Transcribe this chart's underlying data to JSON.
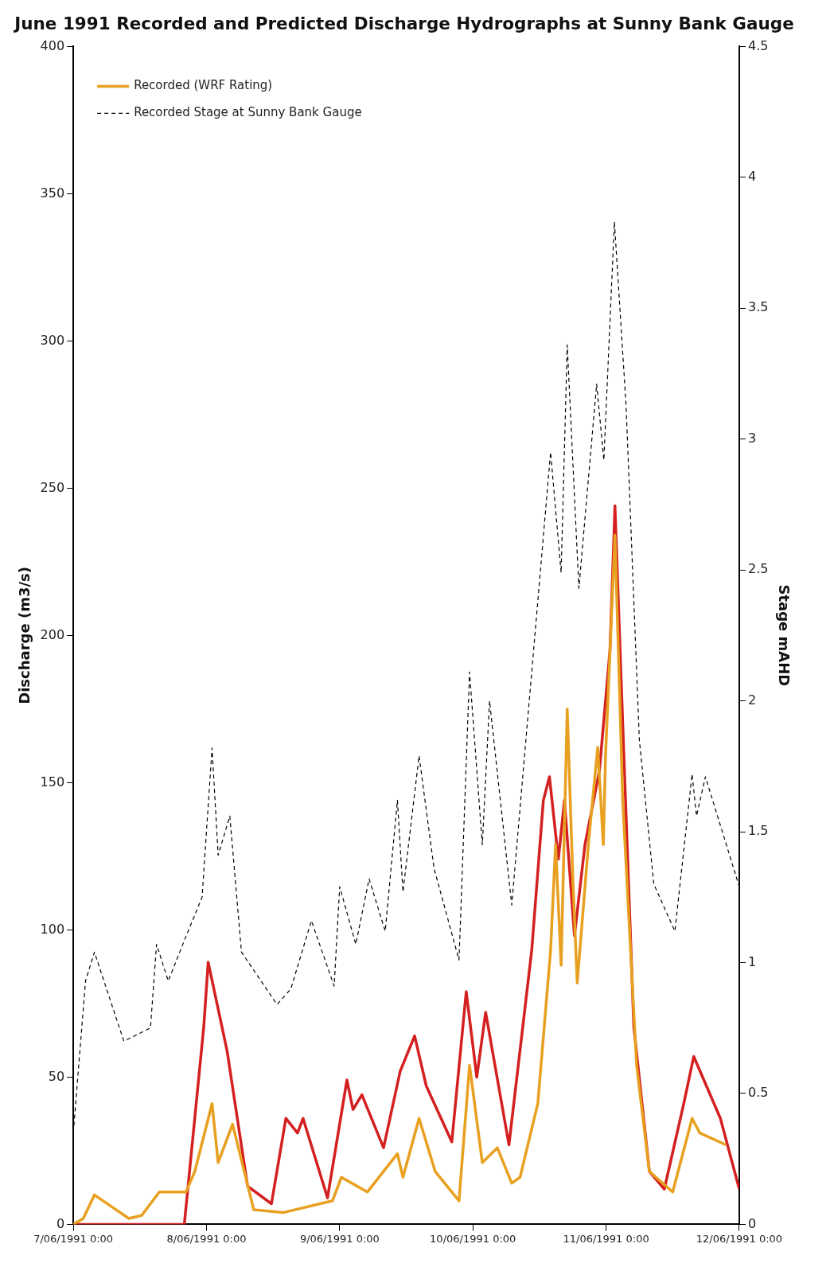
{
  "chart_data": {
    "type": "line",
    "title": "June 1991 Recorded and Predicted Discharge Hydrographs at Sunny Bank Gauge",
    "ylabel": "Discharge (m3/s)",
    "y2label": "Stage mAHD",
    "xlim": [
      "1991-06-07T00:00",
      "1991-06-12T00:00"
    ],
    "xticks": [
      {
        "value": "1991-06-07T00:00",
        "label": "7/06/1991 0:00"
      },
      {
        "value": "1991-06-08T00:00",
        "label": "8/06/1991 0:00"
      },
      {
        "value": "1991-06-09T00:00",
        "label": "9/06/1991 0:00"
      },
      {
        "value": "1991-06-10T00:00",
        "label": "10/06/1991 0:00"
      },
      {
        "value": "1991-06-11T00:00",
        "label": "11/06/1991 0:00"
      },
      {
        "value": "1991-06-12T00:00",
        "label": "12/06/1991 0:00"
      }
    ],
    "ylim": [
      0,
      400
    ],
    "yticks": [
      0,
      50,
      100,
      150,
      200,
      250,
      300,
      350,
      400
    ],
    "y2lim": [
      0,
      4.5
    ],
    "y2ticks": [
      0,
      0.5,
      1,
      1.5,
      2,
      2.5,
      3,
      3.5,
      4,
      4.5
    ],
    "legend": "top left",
    "marker": "none",
    "series": [
      {
        "name": "Recorded (WRF Rating)",
        "color": "#e8a020",
        "line_style": "solid",
        "x": [
          "1991-06-07T00:00",
          "1991-06-07T01:48",
          "1991-06-07T03:48",
          "1991-06-07T10:00",
          "1991-06-07T12:18",
          "1991-06-07T15:30",
          "1991-06-07T20:18",
          "1991-06-07T21:54",
          "1991-06-08T01:00",
          "1991-06-08T02:06",
          "1991-06-08T04:42",
          "1991-06-08T08:30",
          "1991-06-08T13:48",
          "1991-06-08T22:42",
          "1991-06-09T00:18",
          "1991-06-09T05:00",
          "1991-06-09T10:24",
          "1991-06-09T11:24",
          "1991-06-09T14:18",
          "1991-06-09T17:12",
          "1991-06-09T21:30",
          "1991-06-09T23:24",
          "1991-06-10T01:42",
          "1991-06-10T04:24",
          "1991-06-10T07:00",
          "1991-06-10T08:30",
          "1991-06-10T11:42",
          "1991-06-10T14:00",
          "1991-06-10T14:54",
          "1991-06-10T15:54",
          "1991-06-10T17:00",
          "1991-06-10T18:00",
          "1991-06-10T18:48",
          "1991-06-10T20:54",
          "1991-06-10T22:30",
          "1991-06-10T23:30",
          "1991-06-10T23:54",
          "1991-06-11T01:36",
          "1991-06-11T03:00",
          "1991-06-11T05:30",
          "1991-06-11T07:48",
          "1991-06-11T12:00",
          "1991-06-11T15:30",
          "1991-06-11T16:54",
          "1991-06-11T21:36"
        ],
        "values": [
          0,
          2,
          10,
          2,
          3,
          11,
          11,
          18,
          41,
          21,
          34,
          5,
          4,
          8,
          16,
          11,
          24,
          16,
          36,
          18,
          8,
          54,
          21,
          26,
          14,
          16,
          41,
          93,
          129,
          88,
          175,
          118,
          82,
          131,
          162,
          129,
          159,
          234,
          144,
          54,
          18,
          11,
          36,
          31,
          27
        ]
      },
      {
        "name": "Recorded Stage at Sunny Bank Gauge",
        "color": "#000000",
        "line_style": "dashed",
        "axis": "y2",
        "x": [
          "1991-06-07T00:00",
          "1991-06-07T02:12",
          "1991-06-07T03:48",
          "1991-06-07T09:06",
          "1991-06-07T13:54",
          "1991-06-07T15:00",
          "1991-06-07T17:06",
          "1991-06-07T20:18",
          "1991-06-07T23:12",
          "1991-06-08T01:00",
          "1991-06-08T02:06",
          "1991-06-08T04:12",
          "1991-06-08T06:18",
          "1991-06-08T12:42",
          "1991-06-08T15:12",
          "1991-06-08T18:54",
          "1991-06-08T23:00",
          "1991-06-09T00:00",
          "1991-06-09T02:54",
          "1991-06-09T05:18",
          "1991-06-09T08:12",
          "1991-06-09T10:24",
          "1991-06-09T11:24",
          "1991-06-09T14:18",
          "1991-06-09T17:00",
          "1991-06-09T21:30",
          "1991-06-09T23:24",
          "1991-06-10T01:42",
          "1991-06-10T03:00",
          "1991-06-10T07:00",
          "1991-06-10T14:00",
          "1991-06-10T15:54",
          "1991-06-10T17:00",
          "1991-06-10T19:06",
          "1991-06-10T22:18",
          "1991-06-10T23:36",
          "1991-06-11T01:30",
          "1991-06-11T03:36",
          "1991-06-11T06:00",
          "1991-06-11T08:36",
          "1991-06-11T12:24",
          "1991-06-11T15:30",
          "1991-06-11T16:18",
          "1991-06-11T17:54",
          "1991-06-12T00:00"
        ],
        "values": [
          0.35,
          0.93,
          1.04,
          0.7,
          0.75,
          1.07,
          0.93,
          1.1,
          1.25,
          1.82,
          1.41,
          1.56,
          1.04,
          0.84,
          0.9,
          1.16,
          0.91,
          1.29,
          1.07,
          1.32,
          1.12,
          1.62,
          1.27,
          1.79,
          1.36,
          1.01,
          2.11,
          1.45,
          2,
          1.22,
          2.95,
          2.49,
          3.36,
          2.43,
          3.21,
          2.92,
          3.83,
          3.13,
          1.85,
          1.3,
          1.12,
          1.72,
          1.56,
          1.71,
          1.29
        ]
      },
      {
        "color": "#d42020",
        "line_style": "solid",
        "x": [
          "1991-06-07T00:00",
          "1991-06-07T20:00",
          "1991-06-07T23:30",
          "1991-06-08T00:18",
          "1991-06-08T03:42",
          "1991-06-08T07:24",
          "1991-06-08T11:42",
          "1991-06-08T14:18",
          "1991-06-08T16:24",
          "1991-06-08T17:24",
          "1991-06-08T21:48",
          "1991-06-09T01:18",
          "1991-06-09T02:24",
          "1991-06-09T04:00",
          "1991-06-09T07:54",
          "1991-06-09T10:54",
          "1991-06-09T13:30",
          "1991-06-09T15:36",
          "1991-06-09T20:12",
          "1991-06-09T22:48",
          "1991-06-10T00:42",
          "1991-06-10T02:18",
          "1991-06-10T06:30",
          "1991-06-10T10:36",
          "1991-06-10T12:42",
          "1991-06-10T13:48",
          "1991-06-10T15:24",
          "1991-06-10T16:30",
          "1991-06-10T18:18",
          "1991-06-10T20:12",
          "1991-06-10T22:48",
          "1991-06-11T00:42",
          "1991-06-11T01:36",
          "1991-06-11T03:00",
          "1991-06-11T05:00",
          "1991-06-11T07:48",
          "1991-06-11T10:30",
          "1991-06-11T14:00",
          "1991-06-11T15:48",
          "1991-06-11T20:36",
          "1991-06-12T00:00"
        ],
        "values": [
          0,
          0,
          67,
          89,
          59,
          13,
          7,
          36,
          31,
          36,
          9,
          49,
          39,
          44,
          26,
          52,
          64,
          47,
          28,
          79,
          50,
          72,
          27,
          93,
          144,
          152,
          124,
          144,
          98,
          129,
          154,
          195,
          244,
          170,
          67,
          18,
          12,
          41,
          57,
          36,
          12
        ]
      }
    ]
  }
}
